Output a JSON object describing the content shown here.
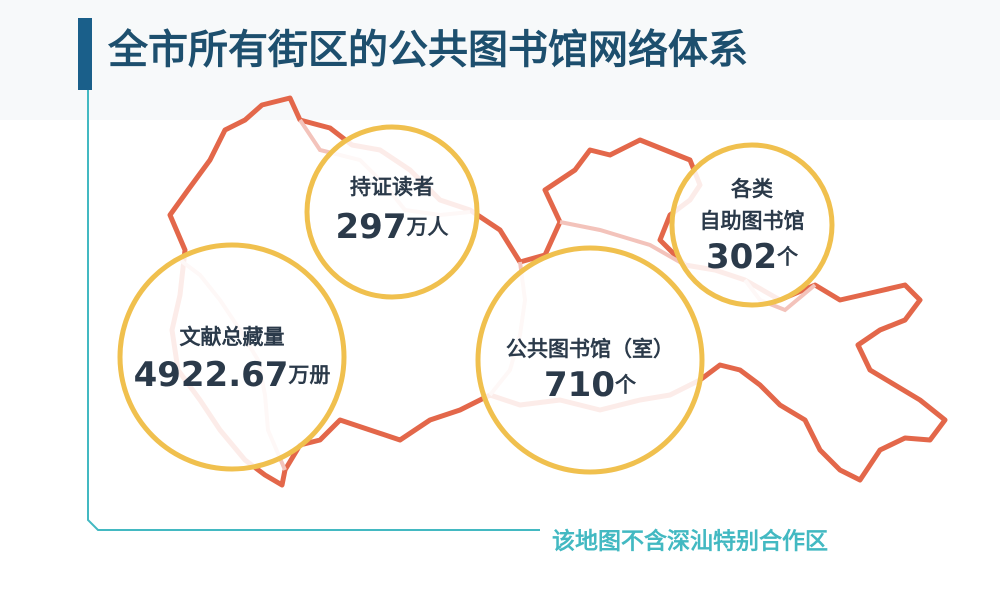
{
  "header": {
    "title": "全市所有街区的公共图书馆网络体系"
  },
  "stats": [
    {
      "label_lines": [
        "持证读者"
      ],
      "value": 297,
      "unit": "万人"
    },
    {
      "label_lines": [
        "文献总藏量"
      ],
      "value": 4922.67,
      "unit": "万册"
    },
    {
      "label_lines": [
        "公共图书馆（室）"
      ],
      "value": 710,
      "unit": "个"
    },
    {
      "label_lines": [
        "各类",
        "自助图书馆"
      ],
      "value": 302,
      "unit": "个"
    }
  ],
  "footer": {
    "note": "该地图不含深汕特别合作区"
  }
}
